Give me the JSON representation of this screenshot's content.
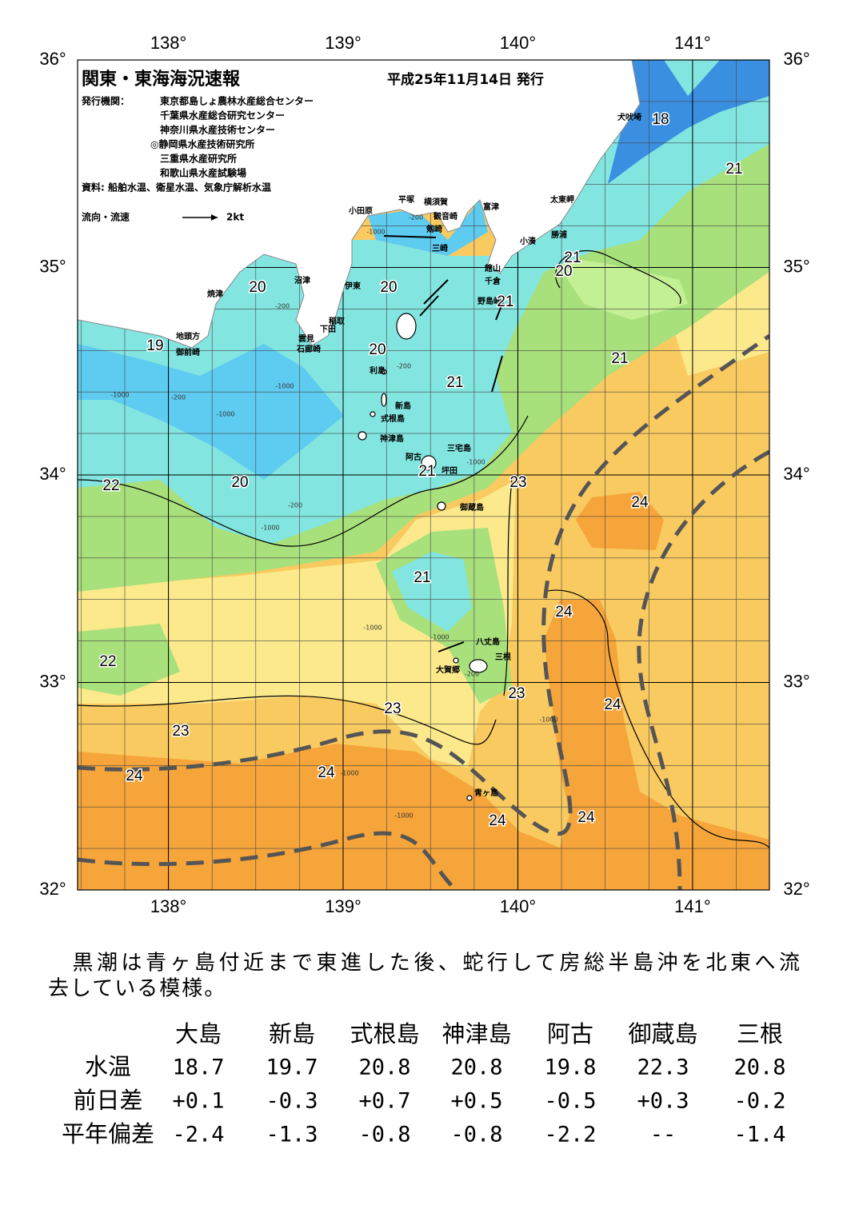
{
  "map": {
    "title": "関東・東海海況速報",
    "date": "平成25年11月14日 発行",
    "issuer_label": "発行機関：",
    "issuers": [
      "東京都島しょ農林水産総合センター",
      "千葉県水産総合研究センター",
      "神奈川県水産技術センター",
      "◎静岡県水産技術研究所",
      "三重県水産研究所",
      "和歌山県水産試験場"
    ],
    "sources": "資料: 船舶水温、衛星水温、気象庁解析水温",
    "legend_label": "流向・流速",
    "legend_speed": "2kt",
    "lon_range": [
      137.48,
      141.44
    ],
    "lat_range": [
      32,
      36
    ],
    "lon_ticks": [
      {
        "value": 138,
        "label": "138°"
      },
      {
        "value": 139,
        "label": "139°"
      },
      {
        "value": 140,
        "label": "140°"
      },
      {
        "value": 141,
        "label": "141°"
      }
    ],
    "lat_ticks": [
      {
        "value": 36,
        "label": "36°"
      },
      {
        "value": 35,
        "label": "35°"
      },
      {
        "value": 34,
        "label": "34°"
      },
      {
        "value": 33,
        "label": "33°"
      },
      {
        "value": 32,
        "label": "32°"
      }
    ],
    "place_names": [
      "犬吠埼",
      "太東岬",
      "勝浦",
      "小湊",
      "富津",
      "横須賀",
      "観音崎",
      "平塚",
      "小田原",
      "剱崎",
      "三崎",
      "館山",
      "千倉",
      "野島崎",
      "沼津",
      "伊東",
      "焼津",
      "稲取",
      "下田",
      "雲見",
      "石廊崎",
      "地頭方",
      "御前崎",
      "利島",
      "新島",
      "式根島",
      "神津島",
      "三宅島",
      "阿古",
      "坪田",
      "御蔵島",
      "八丈島",
      "三根",
      "大賀郷",
      "青ヶ島"
    ],
    "contour_labels": [
      18,
      21,
      21,
      20,
      21,
      20,
      20,
      19,
      20,
      21,
      21,
      22,
      20,
      21,
      23,
      24,
      21,
      24,
      22,
      23,
      24,
      23,
      23,
      24,
      24,
      24,
      24
    ],
    "depth_labels": [
      "-200",
      "-200",
      "-200",
      "-200",
      "-200",
      "-200",
      "-1000",
      "-1000",
      "-1000",
      "-1000",
      "-1000",
      "-1000",
      "-1000",
      "-1000",
      "-1000",
      "-1000",
      "-1000"
    ]
  },
  "summary": [
    "　黒潮は青ヶ島付近まで東進した後、蛇行して房総半島沖を北東へ流",
    "去している模様。"
  ],
  "table": {
    "columns": [
      "大島",
      "新島",
      "式根島",
      "神津島",
      "阿古",
      "御蔵島",
      "三根"
    ],
    "rows": [
      {
        "label": "水温",
        "cells": [
          "18.7",
          "19.7",
          "20.8",
          "20.8",
          "19.8",
          "22.3",
          "20.8"
        ]
      },
      {
        "label": "前日差",
        "cells": [
          "+0.1",
          "-0.3",
          "+0.7",
          "+0.5",
          "-0.5",
          "+0.3",
          "-0.2"
        ]
      },
      {
        "label": "平年偏差",
        "cells": [
          "-2.4",
          "-1.3",
          "-0.8",
          "-0.8",
          "-2.2",
          "--",
          "-1.4"
        ]
      }
    ]
  }
}
